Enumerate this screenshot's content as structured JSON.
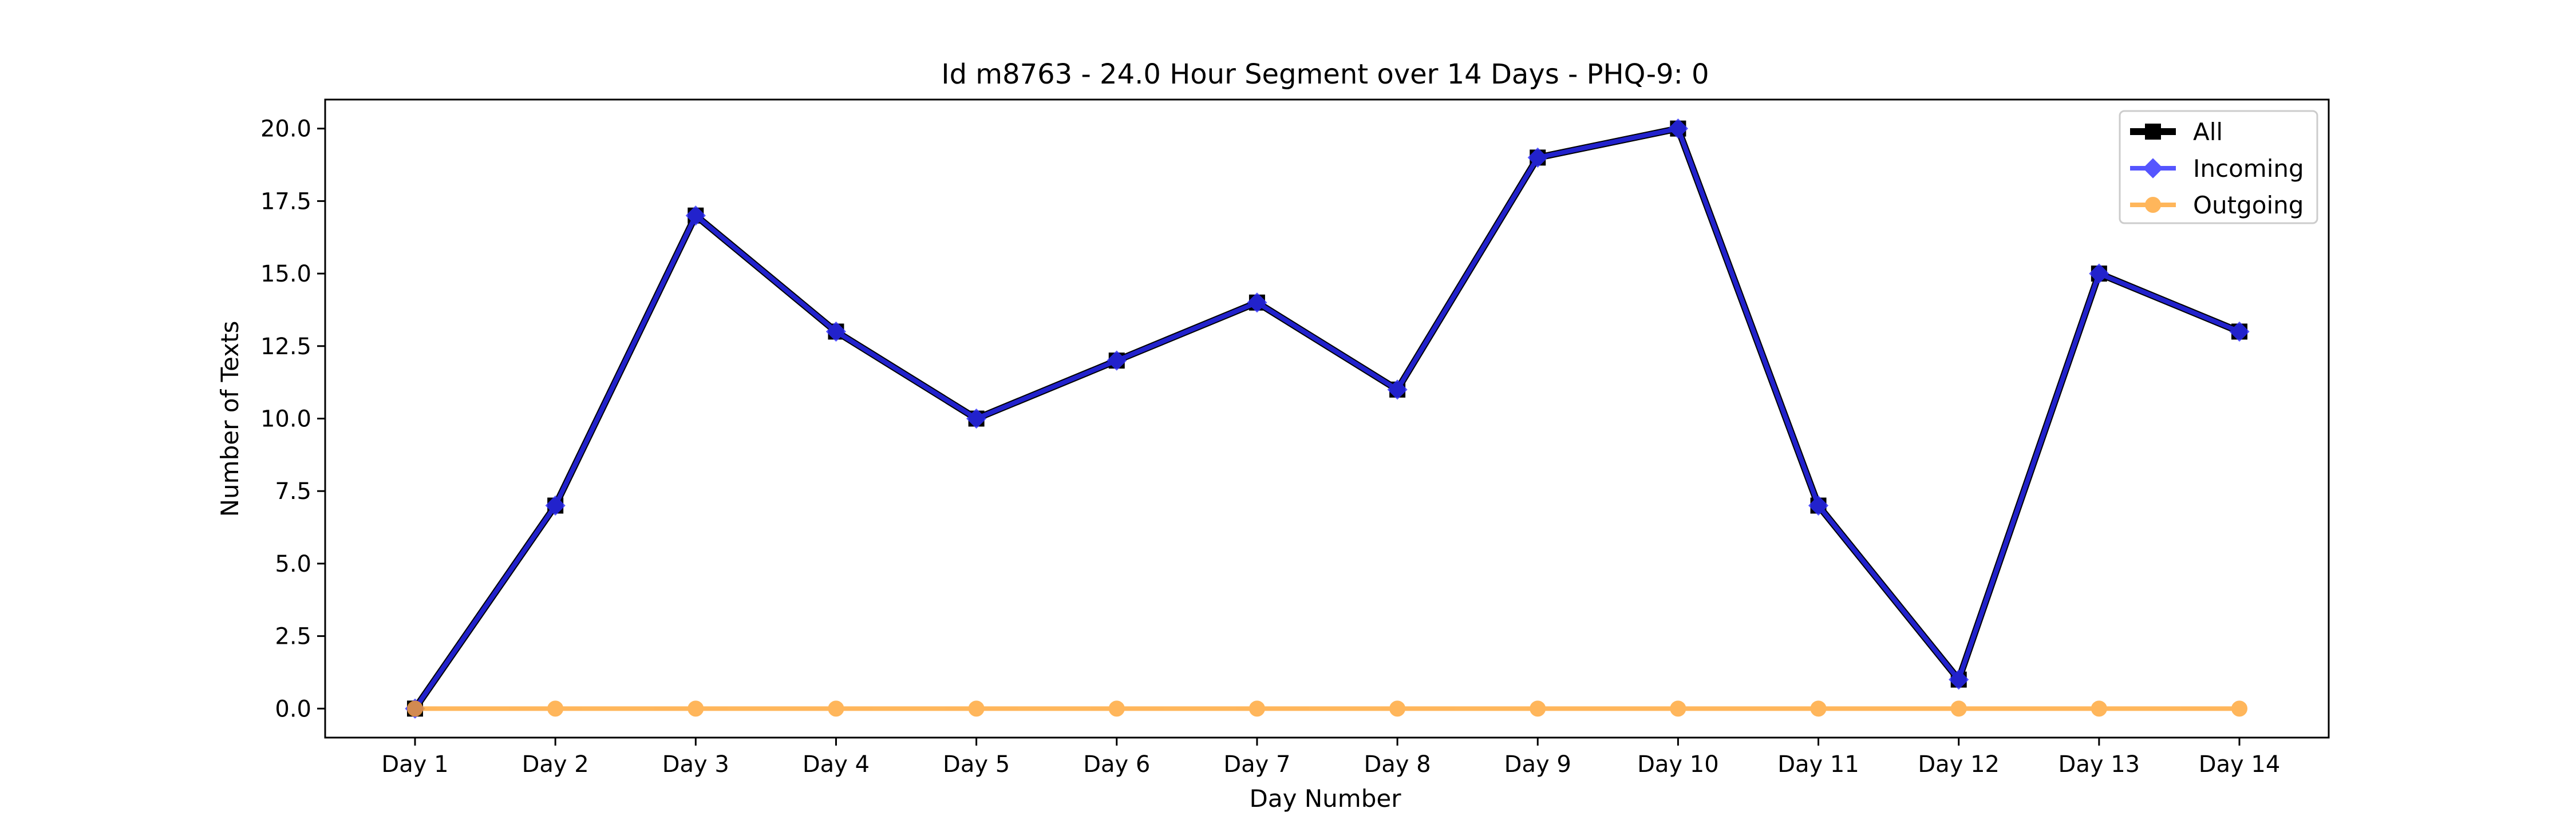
{
  "chart_data": {
    "type": "line",
    "title": "Id m8763 - 24.0 Hour Segment over 14 Days - PHQ-9: 0",
    "xlabel": "Day Number",
    "ylabel": "Number of Texts",
    "categories": [
      "Day 1",
      "Day 2",
      "Day 3",
      "Day 4",
      "Day 5",
      "Day 6",
      "Day 7",
      "Day 8",
      "Day 9",
      "Day 10",
      "Day 11",
      "Day 12",
      "Day 13",
      "Day 14"
    ],
    "yticks": [
      "0.0",
      "2.5",
      "5.0",
      "7.5",
      "10.0",
      "12.5",
      "15.0",
      "17.5",
      "20.0"
    ],
    "ylim": [
      -1,
      21
    ],
    "grid": false,
    "legend_position": "top-right",
    "series": [
      {
        "name": "All",
        "color": "#000000",
        "marker": "square",
        "values": [
          0,
          7,
          17,
          13,
          10,
          12,
          14,
          11,
          19,
          20,
          7,
          1,
          15,
          13
        ]
      },
      {
        "name": "Incoming",
        "color": "#2b2bff",
        "marker": "diamond",
        "values": [
          0,
          7,
          17,
          13,
          10,
          12,
          14,
          11,
          19,
          20,
          7,
          1,
          15,
          13
        ]
      },
      {
        "name": "Outgoing",
        "color": "#ffa533",
        "marker": "circle",
        "values": [
          0,
          0,
          0,
          0,
          0,
          0,
          0,
          0,
          0,
          0,
          0,
          0,
          0,
          0
        ]
      }
    ]
  }
}
